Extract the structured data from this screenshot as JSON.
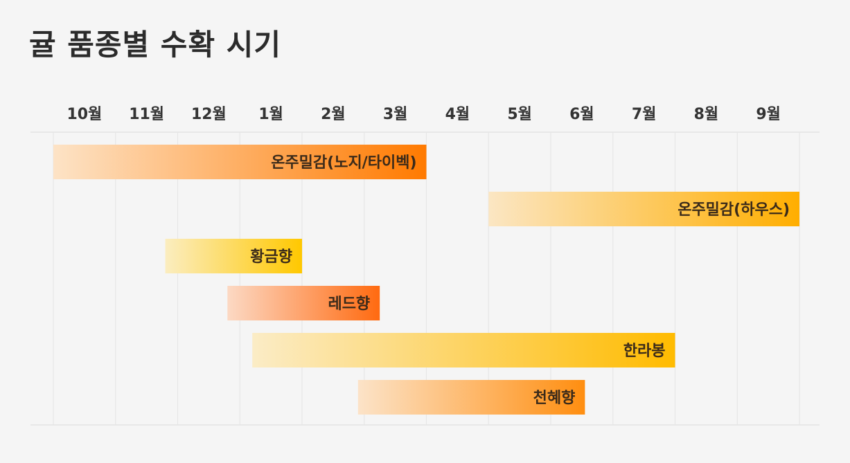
{
  "title": "귤 품종별 수확 시기",
  "chart_data": {
    "type": "gantt",
    "title": "귤 품종별 수확 시기",
    "months": [
      "10월",
      "11월",
      "12월",
      "1월",
      "2월",
      "3월",
      "4월",
      "5월",
      "6월",
      "7월",
      "8월",
      "9월"
    ],
    "axis_start": "10월",
    "grid": true,
    "series": [
      {
        "name": "온주밀감(노지/타이벡)",
        "start": 0.0,
        "end": 6.0,
        "color_from": "#fde3c6",
        "color_to": "#ff7a00"
      },
      {
        "name": "온주밀감(하우스)",
        "start": 7.0,
        "end": 12.0,
        "color_from": "#fbe6c3",
        "color_to": "#ffae00"
      },
      {
        "name": "황금향",
        "start": 1.8,
        "end": 4.0,
        "color_from": "#fbedc0",
        "color_to": "#ffc800"
      },
      {
        "name": "레드향",
        "start": 2.8,
        "end": 5.25,
        "color_from": "#fcd9c4",
        "color_to": "#ff6a10"
      },
      {
        "name": "한라봉",
        "start": 3.2,
        "end": 10.0,
        "color_from": "#fbecc6",
        "color_to": "#ffbb00"
      },
      {
        "name": "천혜향",
        "start": 4.9,
        "end": 8.55,
        "color_from": "#fce3c8",
        "color_to": "#ff8e10"
      }
    ]
  }
}
